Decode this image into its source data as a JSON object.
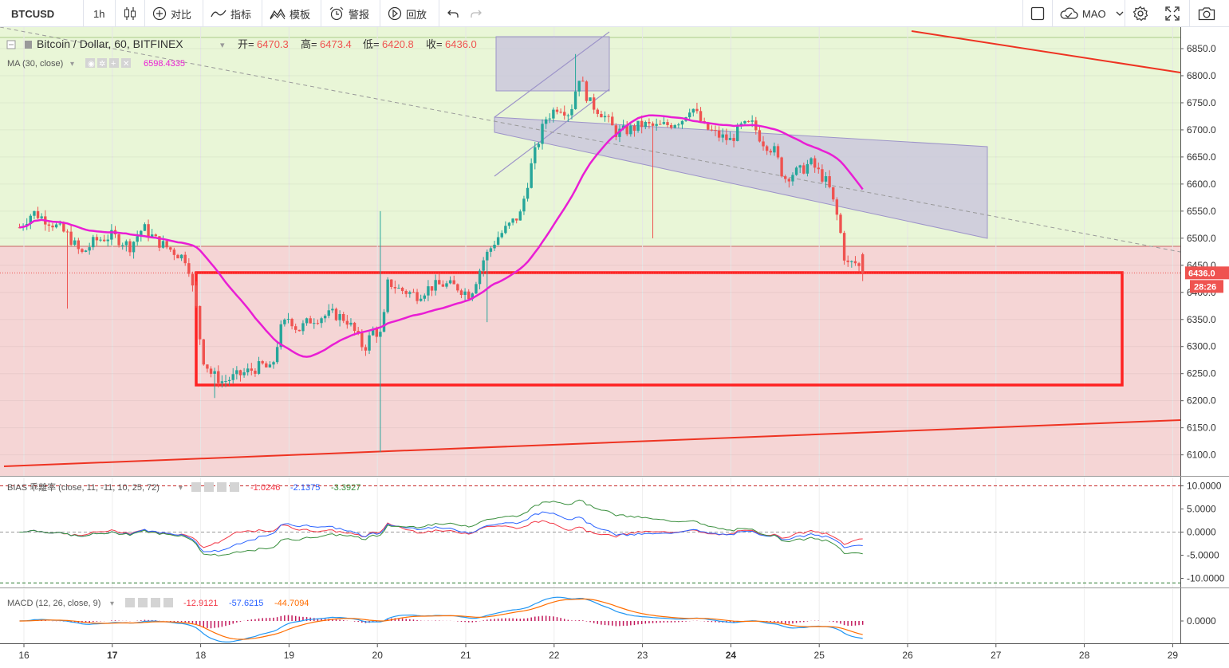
{
  "toolbar": {
    "symbol": "BTCUSD",
    "interval": "1h",
    "compare": "对比",
    "indicators": "指标",
    "templates": "模板",
    "alert": "警报",
    "replay": "回放",
    "cloud_user": "MAO",
    "icons": [
      "candles-icon",
      "plus-circle-icon",
      "indicator-wave-icon",
      "template-icon",
      "alarm-clock-icon",
      "replay-icon",
      "undo-icon",
      "redo-icon",
      "square-icon",
      "cloud-icon",
      "chevron-down-icon",
      "gear-icon",
      "fullscreen-icon",
      "camera-icon"
    ]
  },
  "legend": {
    "title": "Bitcoin / Dollar, 60, BITFINEX",
    "open_label": "开=",
    "open_value": "6470.3",
    "high_label": "高=",
    "high_value": "6473.4",
    "low_label": "低=",
    "low_value": "6420.8",
    "close_label": "收=",
    "close_value": "6436.0",
    "ma_label": "MA (30, close)",
    "ma_value": "6598.4335"
  },
  "bias": {
    "label": "BIAS 乖離率 (close, 11, -11, 10, 25, 72)",
    "v1": "-1.0246",
    "v2": "-2.1375",
    "v3": "-3.3927",
    "ticks": [
      {
        "v": 10,
        "t": "10.0000"
      },
      {
        "v": 5,
        "t": "5.0000"
      },
      {
        "v": 0,
        "t": "0.0000"
      },
      {
        "v": -5,
        "t": "-5.0000"
      },
      {
        "v": -10,
        "t": "-10.0000"
      }
    ]
  },
  "macd": {
    "label": "MACD (12, 26, close, 9)",
    "v1": "-12.9121",
    "v2": "-57.6215",
    "v3": "-44.7094",
    "ticks": [
      {
        "v": 0,
        "t": "0.0000"
      }
    ]
  },
  "price_axis": {
    "ticks": [
      "6850.0",
      "6800.0",
      "6750.0",
      "6700.0",
      "6650.0",
      "6600.0",
      "6550.0",
      "6500.0",
      "6450.0",
      "6400.0",
      "6350.0",
      "6300.0",
      "6250.0",
      "6200.0",
      "6150.0",
      "6100.0"
    ],
    "last_price": "6436.0",
    "countdown": "28:26"
  },
  "time_axis": [
    "16",
    "17",
    "18",
    "19",
    "20",
    "21",
    "22",
    "23",
    "24",
    "25",
    "26",
    "27",
    "28",
    "29"
  ],
  "colors": {
    "up": "#26a69a",
    "down": "#ef5350",
    "ma": "#e91ed4",
    "bias1": "#f23645",
    "bias2": "#2962ff",
    "bias3": "#388e3c",
    "macd_line": "#2196f3",
    "signal_line": "#ff6d00",
    "hist": "#c2185b",
    "zone_green": "#e9f6d7",
    "zone_red": "#f5d5d5",
    "channel": "#c9c5dd",
    "box": "#ff2222"
  },
  "chart_data": {
    "type": "candlestick",
    "timeframe": "60",
    "x_range": [
      "16",
      "29"
    ],
    "ylim": [
      6070,
      6880
    ],
    "hline": 6485,
    "last": {
      "open": 6470.3,
      "high": 6473.4,
      "low": 6420.8,
      "close": 6436.0
    },
    "ma": {
      "name": "MA (30, close)",
      "last": 6598.4335
    },
    "anchors": [
      [
        15.95,
        6520
      ],
      [
        16.1,
        6548
      ],
      [
        16.3,
        6530
      ],
      [
        16.5,
        6505
      ],
      [
        16.65,
        6470
      ],
      [
        16.8,
        6495
      ],
      [
        17.0,
        6505
      ],
      [
        17.2,
        6485
      ],
      [
        17.35,
        6520
      ],
      [
        17.5,
        6495
      ],
      [
        17.7,
        6475
      ],
      [
        17.85,
        6460
      ],
      [
        17.95,
        6370
      ],
      [
        18.02,
        6280
      ],
      [
        18.12,
        6250
      ],
      [
        18.25,
        6235
      ],
      [
        18.4,
        6245
      ],
      [
        18.55,
        6255
      ],
      [
        18.7,
        6265
      ],
      [
        18.8,
        6255
      ],
      [
        18.9,
        6330
      ],
      [
        19.0,
        6355
      ],
      [
        19.1,
        6330
      ],
      [
        19.25,
        6350
      ],
      [
        19.35,
        6355
      ],
      [
        19.5,
        6360
      ],
      [
        19.65,
        6350
      ],
      [
        19.75,
        6325
      ],
      [
        19.85,
        6295
      ],
      [
        19.95,
        6330
      ],
      [
        20.05,
        6320
      ],
      [
        20.12,
        6420
      ],
      [
        20.25,
        6405
      ],
      [
        20.45,
        6395
      ],
      [
        20.6,
        6410
      ],
      [
        20.75,
        6415
      ],
      [
        20.9,
        6410
      ],
      [
        21.05,
        6395
      ],
      [
        21.2,
        6460
      ],
      [
        21.35,
        6500
      ],
      [
        21.5,
        6525
      ],
      [
        21.62,
        6545
      ],
      [
        21.75,
        6640
      ],
      [
        21.9,
        6720
      ],
      [
        22.05,
        6745
      ],
      [
        22.18,
        6730
      ],
      [
        22.28,
        6800
      ],
      [
        22.4,
        6750
      ],
      [
        22.55,
        6730
      ],
      [
        22.7,
        6695
      ],
      [
        22.85,
        6700
      ],
      [
        23.0,
        6710
      ],
      [
        23.15,
        6705
      ],
      [
        23.3,
        6710
      ],
      [
        23.45,
        6720
      ],
      [
        23.55,
        6745
      ],
      [
        23.7,
        6705
      ],
      [
        23.85,
        6690
      ],
      [
        24.0,
        6680
      ],
      [
        24.1,
        6705
      ],
      [
        24.25,
        6710
      ],
      [
        24.35,
        6680
      ],
      [
        24.5,
        6660
      ],
      [
        24.6,
        6610
      ],
      [
        24.7,
        6620
      ],
      [
        24.8,
        6625
      ],
      [
        24.9,
        6640
      ],
      [
        25.0,
        6620
      ],
      [
        25.1,
        6600
      ],
      [
        25.22,
        6530
      ],
      [
        25.3,
        6450
      ],
      [
        25.4,
        6455
      ],
      [
        25.52,
        6436
      ]
    ]
  }
}
